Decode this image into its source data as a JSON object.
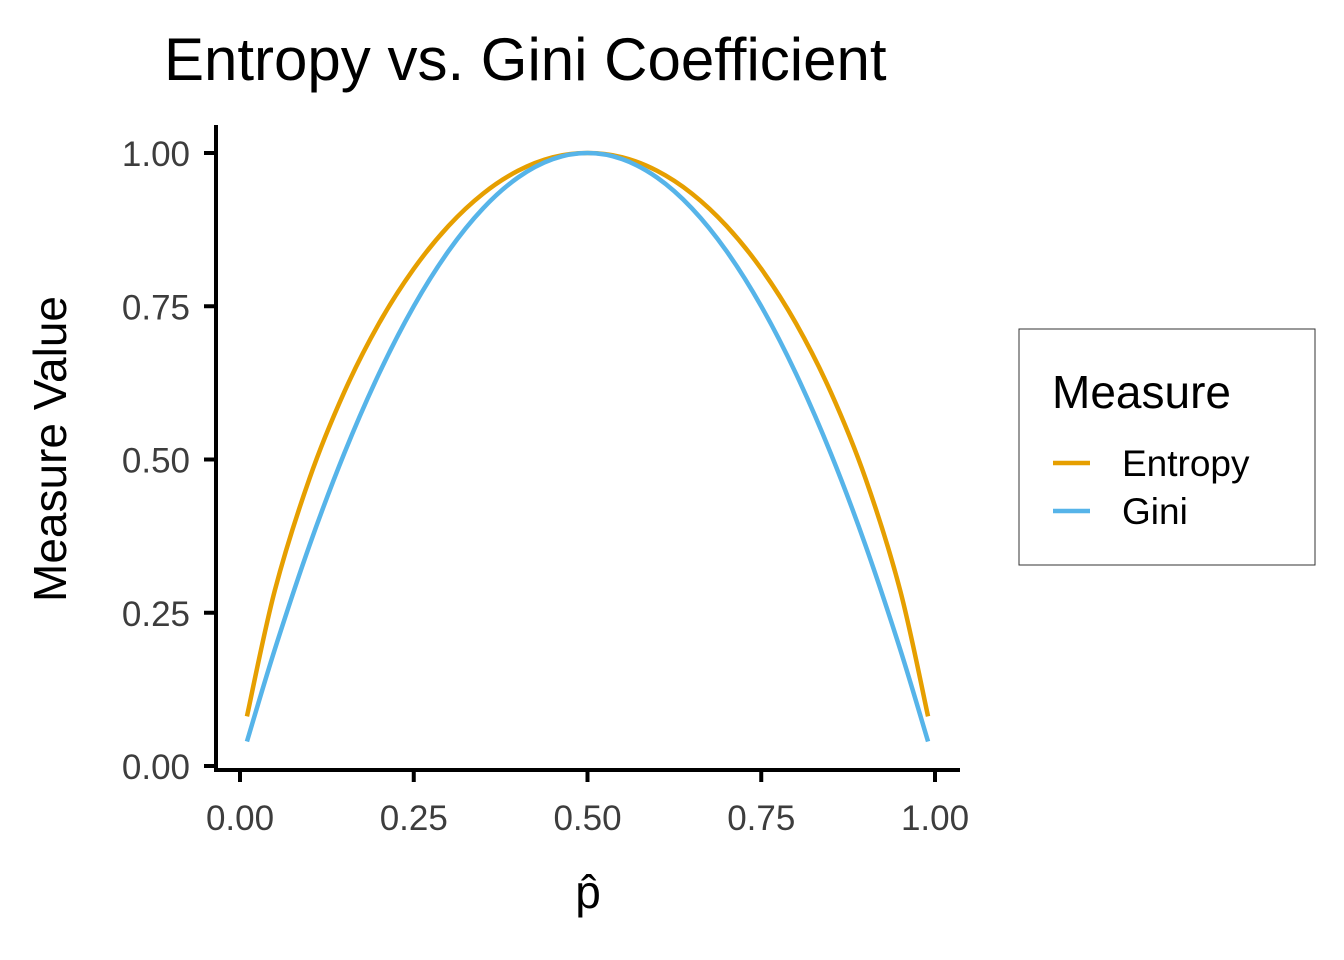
{
  "chart_data": {
    "type": "line",
    "title": "Entropy vs. Gini Coefficient",
    "xlabel": "p̂",
    "ylabel": "Measure Value",
    "xlim": [
      0,
      1
    ],
    "ylim": [
      0,
      1
    ],
    "x_ticks": [
      "0.00",
      "0.25",
      "0.50",
      "0.75",
      "1.00"
    ],
    "y_ticks": [
      "0.00",
      "0.25",
      "0.50",
      "0.75",
      "1.00"
    ],
    "grid": false,
    "legend": {
      "title": "Measure",
      "position": "right"
    },
    "x": [
      0.01,
      0.05,
      0.1,
      0.15,
      0.2,
      0.25,
      0.3,
      0.35,
      0.4,
      0.45,
      0.5,
      0.55,
      0.6,
      0.65,
      0.7,
      0.75,
      0.8,
      0.85,
      0.9,
      0.95,
      0.99
    ],
    "series": [
      {
        "name": "Entropy",
        "color": "#E69F00",
        "values": [
          0.081,
          0.286,
          0.469,
          0.61,
          0.722,
          0.811,
          0.881,
          0.934,
          0.971,
          0.993,
          1.0,
          0.993,
          0.971,
          0.934,
          0.881,
          0.811,
          0.722,
          0.61,
          0.469,
          0.286,
          0.081
        ]
      },
      {
        "name": "Gini",
        "color": "#56B4E9",
        "values": [
          0.04,
          0.19,
          0.36,
          0.51,
          0.64,
          0.75,
          0.84,
          0.91,
          0.96,
          0.99,
          1.0,
          0.99,
          0.96,
          0.91,
          0.84,
          0.75,
          0.64,
          0.51,
          0.36,
          0.19,
          0.04
        ]
      }
    ]
  }
}
